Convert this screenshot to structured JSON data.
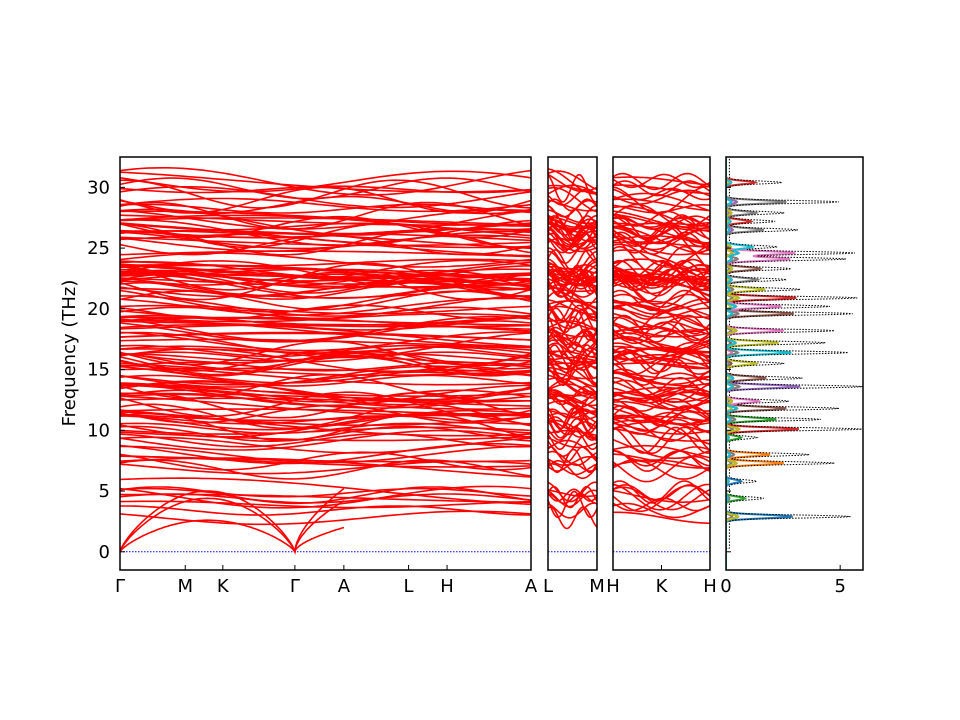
{
  "chart_data": {
    "type": "line",
    "ylabel": "Frequency (THz)",
    "ylim": [
      -1.5,
      32.5
    ],
    "yticks": [
      0,
      5,
      10,
      15,
      20,
      25,
      30
    ],
    "ytick_labels": [
      "0",
      "5",
      "10",
      "15",
      "20",
      "25",
      "30"
    ],
    "band_color": "#ff0000",
    "zero_line_color": "#0000ff",
    "panels": [
      {
        "id": "gamma-m-k-gamma-a-l-h-a",
        "kpoints": [
          "Γ",
          "M",
          "K",
          "Γ",
          "A",
          "L",
          "H",
          "A"
        ],
        "kpoint_positions": [
          0.0,
          0.373,
          0.588,
          1.0,
          1.28,
          1.65,
          1.87,
          2.35
        ]
      },
      {
        "id": "l-m",
        "kpoints": [
          "L",
          "M"
        ],
        "kpoint_positions": [
          0.0,
          1.0
        ]
      },
      {
        "id": "h-k-h2",
        "kpoints": [
          "H",
          "K",
          "H"
        ],
        "kpoint_positions": [
          0.0,
          0.5,
          1.0
        ]
      }
    ],
    "dos_panel": {
      "xlim": [
        0,
        6
      ],
      "xticks": [
        0,
        5
      ],
      "xtick_labels": [
        "0",
        "5"
      ],
      "total_color": "#000000",
      "partial_colors": [
        "#1f77b4",
        "#ff7f0e",
        "#2ca02c",
        "#d62728",
        "#9467bd",
        "#8c564b",
        "#e377c2",
        "#7f7f7f",
        "#bcbd22",
        "#17becf"
      ],
      "peaks": [
        {
          "f": 2.9,
          "h": 5.3,
          "c": 0
        },
        {
          "f": 4.4,
          "h": 1.5,
          "c": 2
        },
        {
          "f": 5.8,
          "h": 1.2,
          "c": 0
        },
        {
          "f": 7.3,
          "h": 4.6,
          "c": 1
        },
        {
          "f": 8.0,
          "h": 3.5,
          "c": 1
        },
        {
          "f": 9.4,
          "h": 1.2,
          "c": 2
        },
        {
          "f": 10.1,
          "h": 5.8,
          "c": 3
        },
        {
          "f": 10.9,
          "h": 4.0,
          "c": 2
        },
        {
          "f": 11.8,
          "h": 4.8,
          "c": 5
        },
        {
          "f": 12.4,
          "h": 2.6,
          "c": 6
        },
        {
          "f": 13.6,
          "h": 5.9,
          "c": 4
        },
        {
          "f": 14.3,
          "h": 3.2,
          "c": 5
        },
        {
          "f": 15.5,
          "h": 2.4,
          "c": 8
        },
        {
          "f": 16.4,
          "h": 5.2,
          "c": 9
        },
        {
          "f": 17.2,
          "h": 4.2,
          "c": 8
        },
        {
          "f": 18.2,
          "h": 4.6,
          "c": 6
        },
        {
          "f": 19.6,
          "h": 5.4,
          "c": 5
        },
        {
          "f": 20.2,
          "h": 4.4,
          "c": 6
        },
        {
          "f": 20.9,
          "h": 5.6,
          "c": 3
        },
        {
          "f": 21.6,
          "h": 3.1,
          "c": 8
        },
        {
          "f": 22.4,
          "h": 2.5,
          "c": 7
        },
        {
          "f": 23.3,
          "h": 2.7,
          "c": 5
        },
        {
          "f": 24.1,
          "h": 5.1,
          "c": 6
        },
        {
          "f": 24.6,
          "h": 5.5,
          "c": 6
        },
        {
          "f": 25.1,
          "h": 2.1,
          "c": 9
        },
        {
          "f": 26.5,
          "h": 3.0,
          "c": 7
        },
        {
          "f": 27.2,
          "h": 2.0,
          "c": 3
        },
        {
          "f": 27.9,
          "h": 2.4,
          "c": 7
        },
        {
          "f": 28.8,
          "h": 4.8,
          "c": 7
        },
        {
          "f": 30.4,
          "h": 2.3,
          "c": 3
        }
      ]
    }
  }
}
